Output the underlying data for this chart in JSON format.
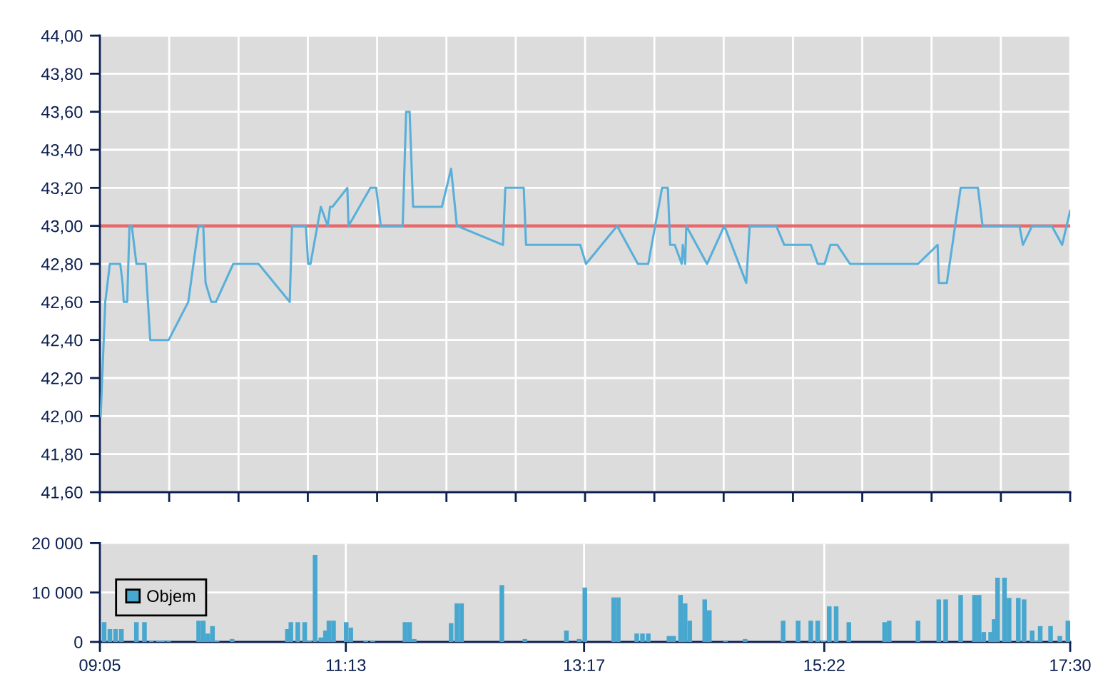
{
  "chart_data": [
    {
      "type": "line",
      "color": "#58afd9",
      "x": [
        9.09,
        9.13,
        9.17,
        9.26,
        9.28,
        9.29,
        9.32,
        9.34,
        9.36,
        9.4,
        9.48,
        9.52,
        9.68,
        9.85,
        9.94,
        9.98,
        10.0,
        10.05,
        10.09,
        10.24,
        10.46,
        10.73,
        10.75,
        10.87,
        10.89,
        10.91,
        11.0,
        11.06,
        11.08,
        11.1,
        11.23,
        11.24,
        11.43,
        11.48,
        11.52,
        11.71,
        11.74,
        11.77,
        11.8,
        12.05,
        12.13,
        12.18,
        12.58,
        12.6,
        12.76,
        12.78,
        13.25,
        13.3,
        13.57,
        13.75,
        13.84,
        13.96,
        14.01,
        14.03,
        14.07,
        14.13,
        14.14,
        14.16,
        14.17,
        14.35,
        14.5,
        14.69,
        14.72,
        14.95,
        15.02,
        15.25,
        15.31,
        15.37,
        15.42,
        15.48,
        15.59,
        16.18,
        16.35,
        16.36,
        16.43,
        16.55,
        16.7,
        16.74,
        17.06,
        17.09,
        17.17,
        17.34,
        17.43,
        17.5
      ],
      "values": [
        42.0,
        42.6,
        42.8,
        42.8,
        42.7,
        42.6,
        42.6,
        43.0,
        43.0,
        42.8,
        42.8,
        42.4,
        42.4,
        42.6,
        43.0,
        43.0,
        42.7,
        42.6,
        42.6,
        42.8,
        42.8,
        42.6,
        43.0,
        43.0,
        42.8,
        42.8,
        43.1,
        43.0,
        43.1,
        43.1,
        43.2,
        43.0,
        43.2,
        43.2,
        43.0,
        43.0,
        43.6,
        43.6,
        43.1,
        43.1,
        43.3,
        43.0,
        42.9,
        43.2,
        43.2,
        42.9,
        42.9,
        42.8,
        43.0,
        42.8,
        42.8,
        43.2,
        43.2,
        42.9,
        42.9,
        42.8,
        42.9,
        42.8,
        43.0,
        42.8,
        43.0,
        42.7,
        43.0,
        43.0,
        42.9,
        42.9,
        42.8,
        42.8,
        42.9,
        42.9,
        42.8,
        42.8,
        42.9,
        42.7,
        42.7,
        43.2,
        43.2,
        43.0,
        43.0,
        42.9,
        43.0,
        43.0,
        42.9,
        43.08
      ],
      "xlim": [
        9.0833,
        17.5
      ],
      "xticks": [
        {
          "value": 9.0833,
          "label": null
        },
        {
          "value": 9.6845,
          "label": null
        },
        {
          "value": 10.2857,
          "label": null
        },
        {
          "value": 10.8869,
          "label": null
        },
        {
          "value": 11.4881,
          "label": null
        },
        {
          "value": 12.0893,
          "label": null
        },
        {
          "value": 12.6905,
          "label": null
        },
        {
          "value": 13.2917,
          "label": null
        },
        {
          "value": 13.8929,
          "label": null
        },
        {
          "value": 14.494,
          "label": null
        },
        {
          "value": 15.0952,
          "label": null
        },
        {
          "value": 15.6964,
          "label": null
        },
        {
          "value": 16.2976,
          "label": null
        },
        {
          "value": 16.8988,
          "label": null
        },
        {
          "value": 17.5,
          "label": null
        }
      ],
      "ylim": [
        41.6,
        44.0
      ],
      "yticks": [
        {
          "value": 41.6,
          "label": "41,60"
        },
        {
          "value": 41.8,
          "label": "41,80"
        },
        {
          "value": 42.0,
          "label": "42,00"
        },
        {
          "value": 42.2,
          "label": "42,20"
        },
        {
          "value": 42.4,
          "label": "42,40"
        },
        {
          "value": 42.6,
          "label": "42,60"
        },
        {
          "value": 42.8,
          "label": "42,80"
        },
        {
          "value": 43.0,
          "label": "43,00"
        },
        {
          "value": 43.2,
          "label": "43,20"
        },
        {
          "value": 43.4,
          "label": "43,40"
        },
        {
          "value": 43.6,
          "label": "43,60"
        },
        {
          "value": 43.8,
          "label": "43,80"
        },
        {
          "value": 44.0,
          "label": "44,00"
        }
      ],
      "ref_lines": [
        {
          "axis": "y",
          "value": 43.0,
          "color": "#e8696b"
        }
      ],
      "grid": true,
      "tick_labels": "y"
    },
    {
      "type": "bar",
      "series": [
        {
          "name": "Objem",
          "color": "#47a7cf",
          "x": [
            9.12,
            9.17,
            9.22,
            9.27,
            9.4,
            9.47,
            9.53,
            9.59,
            9.63,
            9.68,
            9.94,
            9.98,
            10.02,
            10.06,
            10.1,
            10.23,
            10.71,
            10.74,
            10.8,
            10.86,
            10.9,
            10.95,
            11.0,
            11.04,
            11.07,
            11.11,
            11.22,
            11.26,
            11.39,
            11.45,
            11.73,
            11.77,
            11.81,
            12.13,
            12.18,
            12.22,
            12.57,
            12.77,
            13.13,
            13.24,
            13.29,
            13.54,
            13.58,
            13.74,
            13.79,
            13.84,
            14.02,
            14.06,
            14.12,
            14.16,
            14.2,
            14.33,
            14.37,
            14.51,
            14.68,
            15.01,
            15.14,
            15.25,
            15.31,
            15.36,
            15.41,
            15.47,
            15.58,
            15.89,
            15.93,
            16.18,
            16.36,
            16.42,
            16.55,
            16.67,
            16.71,
            16.75,
            16.81,
            16.84,
            16.87,
            16.93,
            16.97,
            17.05,
            17.1,
            17.17,
            17.2,
            17.24,
            17.33,
            17.41,
            17.48
          ],
          "values": [
            4000,
            2600,
            2600,
            2600,
            4000,
            4000,
            300,
            300,
            300,
            300,
            4300,
            4300,
            1700,
            3200,
            300,
            600,
            2600,
            4000,
            4000,
            4000,
            300,
            17600,
            900,
            2300,
            4300,
            4300,
            4000,
            2900,
            300,
            300,
            4000,
            4000,
            600,
            3800,
            7800,
            7800,
            11500,
            600,
            2300,
            600,
            11000,
            9000,
            9000,
            1700,
            1700,
            1700,
            1200,
            1200,
            9500,
            7800,
            4300,
            8600,
            6400,
            300,
            600,
            4300,
            4300,
            4300,
            4300,
            300,
            7200,
            7200,
            4000,
            4000,
            4300,
            4300,
            8600,
            8600,
            9500,
            9500,
            9500,
            2000,
            2000,
            4600,
            13000,
            13000,
            8900,
            8900,
            8600,
            2300,
            300,
            3200,
            3200,
            1200,
            4300
          ]
        }
      ],
      "xlim": [
        9.0833,
        17.5
      ],
      "xticks": [
        {
          "value": 9.0833,
          "label": "09:05"
        },
        {
          "value": 11.2167,
          "label": "11:13"
        },
        {
          "value": 13.2833,
          "label": "13:17"
        },
        {
          "value": 15.3667,
          "label": "15:22"
        },
        {
          "value": 17.5,
          "label": "17:30"
        }
      ],
      "ylim": [
        0,
        20000
      ],
      "yticks": [
        0,
        {
          "value": 10000,
          "label": "10 000"
        },
        {
          "value": 20000,
          "label": "20 000"
        }
      ],
      "grid": true,
      "legend": "left"
    }
  ]
}
